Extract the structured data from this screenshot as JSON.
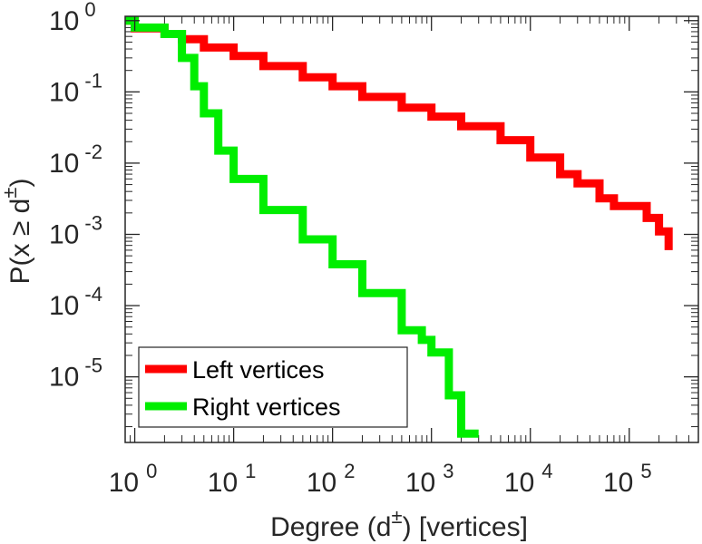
{
  "chart_data": {
    "type": "line",
    "title": "",
    "xlabel": {
      "prefix": "Degree (d",
      "sup": "±",
      "suffix": ") [vertices]"
    },
    "ylabel": {
      "prefix": "P(x ≥ d",
      "sup": "±",
      "suffix": ")"
    },
    "x_scale": "log",
    "y_scale": "log",
    "xlim": [
      0.8,
      500000
    ],
    "ylim": [
      1.2e-06,
      1.15
    ],
    "x_ticks": [
      {
        "base": "10",
        "exp": "0",
        "value": 1
      },
      {
        "base": "10",
        "exp": "1",
        "value": 10
      },
      {
        "base": "10",
        "exp": "2",
        "value": 100
      },
      {
        "base": "10",
        "exp": "3",
        "value": 1000
      },
      {
        "base": "10",
        "exp": "4",
        "value": 10000
      },
      {
        "base": "10",
        "exp": "5",
        "value": 100000
      }
    ],
    "y_ticks": [
      {
        "base": "10",
        "exp": "0",
        "value": 1
      },
      {
        "base": "10",
        "exp": "-1",
        "value": 0.1
      },
      {
        "base": "10",
        "exp": "-2",
        "value": 0.01
      },
      {
        "base": "10",
        "exp": "-3",
        "value": 0.001
      },
      {
        "base": "10",
        "exp": "-4",
        "value": 0.0001
      },
      {
        "base": "10",
        "exp": "-5",
        "value": 1e-05
      }
    ],
    "grid": false,
    "legend_position": "bottom-left",
    "series": [
      {
        "name": "Left vertices",
        "color": "#ff0000",
        "x": [
          0.8,
          1,
          2,
          3,
          5,
          10,
          20,
          50,
          100,
          200,
          500,
          1000,
          2000,
          5000,
          10000,
          20000,
          30000,
          50000,
          70000,
          100000,
          150000,
          200000,
          250000
        ],
        "y": [
          1.0,
          0.78,
          0.65,
          0.55,
          0.42,
          0.32,
          0.23,
          0.16,
          0.12,
          0.085,
          0.06,
          0.045,
          0.033,
          0.021,
          0.012,
          0.007,
          0.0052,
          0.0032,
          0.0025,
          0.0025,
          0.0017,
          0.0011,
          0.0006
        ]
      },
      {
        "name": "Right vertices",
        "color": "#00ee00",
        "x": [
          0.8,
          1,
          2,
          3,
          4,
          5,
          7,
          10,
          20,
          50,
          100,
          200,
          500,
          800,
          1000,
          1500,
          2000,
          3000
        ],
        "y": [
          1.0,
          0.8,
          0.65,
          0.3,
          0.12,
          0.05,
          0.015,
          0.006,
          0.0022,
          0.00085,
          0.00038,
          0.00015,
          4.5e-05,
          3.3e-05,
          2.2e-05,
          5.5e-06,
          1.6e-06,
          1.6e-06
        ]
      }
    ]
  }
}
